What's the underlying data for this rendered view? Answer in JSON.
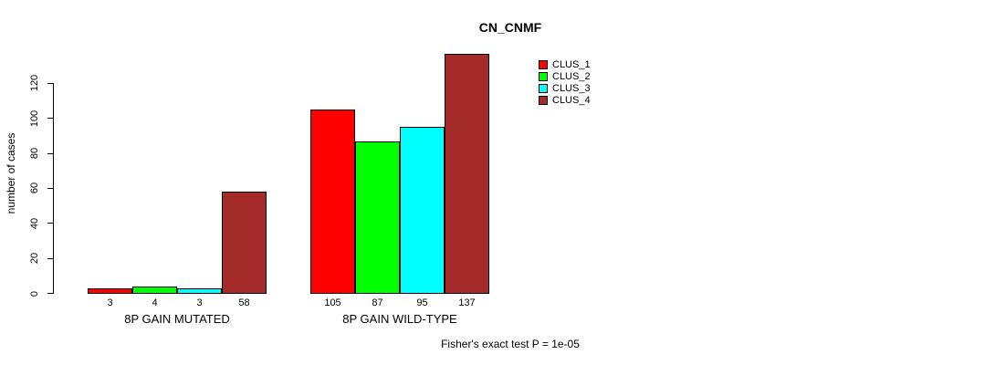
{
  "chart_data": {
    "type": "bar",
    "title": "CN_CNMF",
    "ylabel": "number of cases",
    "xlabel": "",
    "annotation": "Fisher's exact test P = 1e-05",
    "categories": [
      "8P GAIN MUTATED",
      "8P GAIN WILD-TYPE"
    ],
    "series": [
      {
        "name": "CLUS_1",
        "color": "#FF0000",
        "values": [
          3,
          105
        ]
      },
      {
        "name": "CLUS_2",
        "color": "#00FF00",
        "values": [
          4,
          87
        ]
      },
      {
        "name": "CLUS_3",
        "color": "#00FFFF",
        "values": [
          3,
          95
        ]
      },
      {
        "name": "CLUS_4",
        "color": "#A52A2A",
        "values": [
          58,
          137
        ]
      }
    ],
    "bar_value_labels": [
      [
        "3",
        "4",
        "3",
        "58"
      ],
      [
        "105",
        "87",
        "95",
        "137"
      ]
    ],
    "yticks": [
      0,
      20,
      40,
      60,
      80,
      100,
      120
    ],
    "ylim": [
      0,
      140
    ],
    "grid": false,
    "legend_position": "top-right",
    "legend": [
      "CLUS_1",
      "CLUS_2",
      "CLUS_3",
      "CLUS_4"
    ]
  }
}
